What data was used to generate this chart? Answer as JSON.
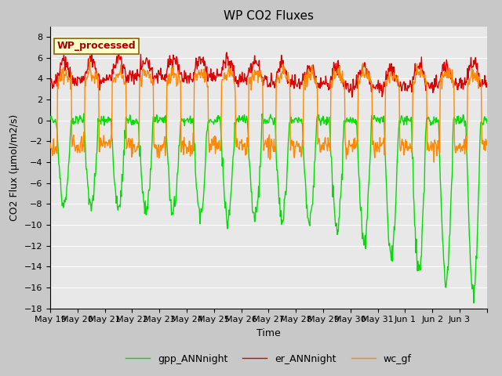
{
  "title": "WP CO2 Fluxes",
  "xlabel": "Time",
  "ylabel": "CO2 Flux (μmol/m2/s)",
  "ylim": [
    -18,
    9
  ],
  "yticks": [
    -18,
    -16,
    -14,
    -12,
    -10,
    -8,
    -6,
    -4,
    -2,
    0,
    2,
    4,
    6,
    8
  ],
  "n_days": 16,
  "n_points": 768,
  "colors": {
    "gpp": "#00dd00",
    "er": "#dd0000",
    "wc": "#ff8800"
  },
  "legend_labels": [
    "gpp_ANNnight",
    "er_ANNnight",
    "wc_gf"
  ],
  "annotation_text": "WP_processed",
  "annotation_color": "#aa0000",
  "annotation_bg": "#ffffcc",
  "fig_bg": "#c8c8c8",
  "plot_bg": "#e8e8e8",
  "title_fontsize": 11,
  "axis_label_fontsize": 9,
  "tick_label_fontsize": 8,
  "legend_fontsize": 9,
  "xtick_labels": [
    "May 19",
    "May 20",
    "May 21",
    "May 22",
    "May 23",
    "May 24",
    "May 25",
    "May 26",
    "May 27",
    "May 28",
    "May 29",
    "May 30",
    "May 31",
    "Jun 1",
    "Jun 2",
    "Jun 3"
  ],
  "linewidth": 1.0
}
